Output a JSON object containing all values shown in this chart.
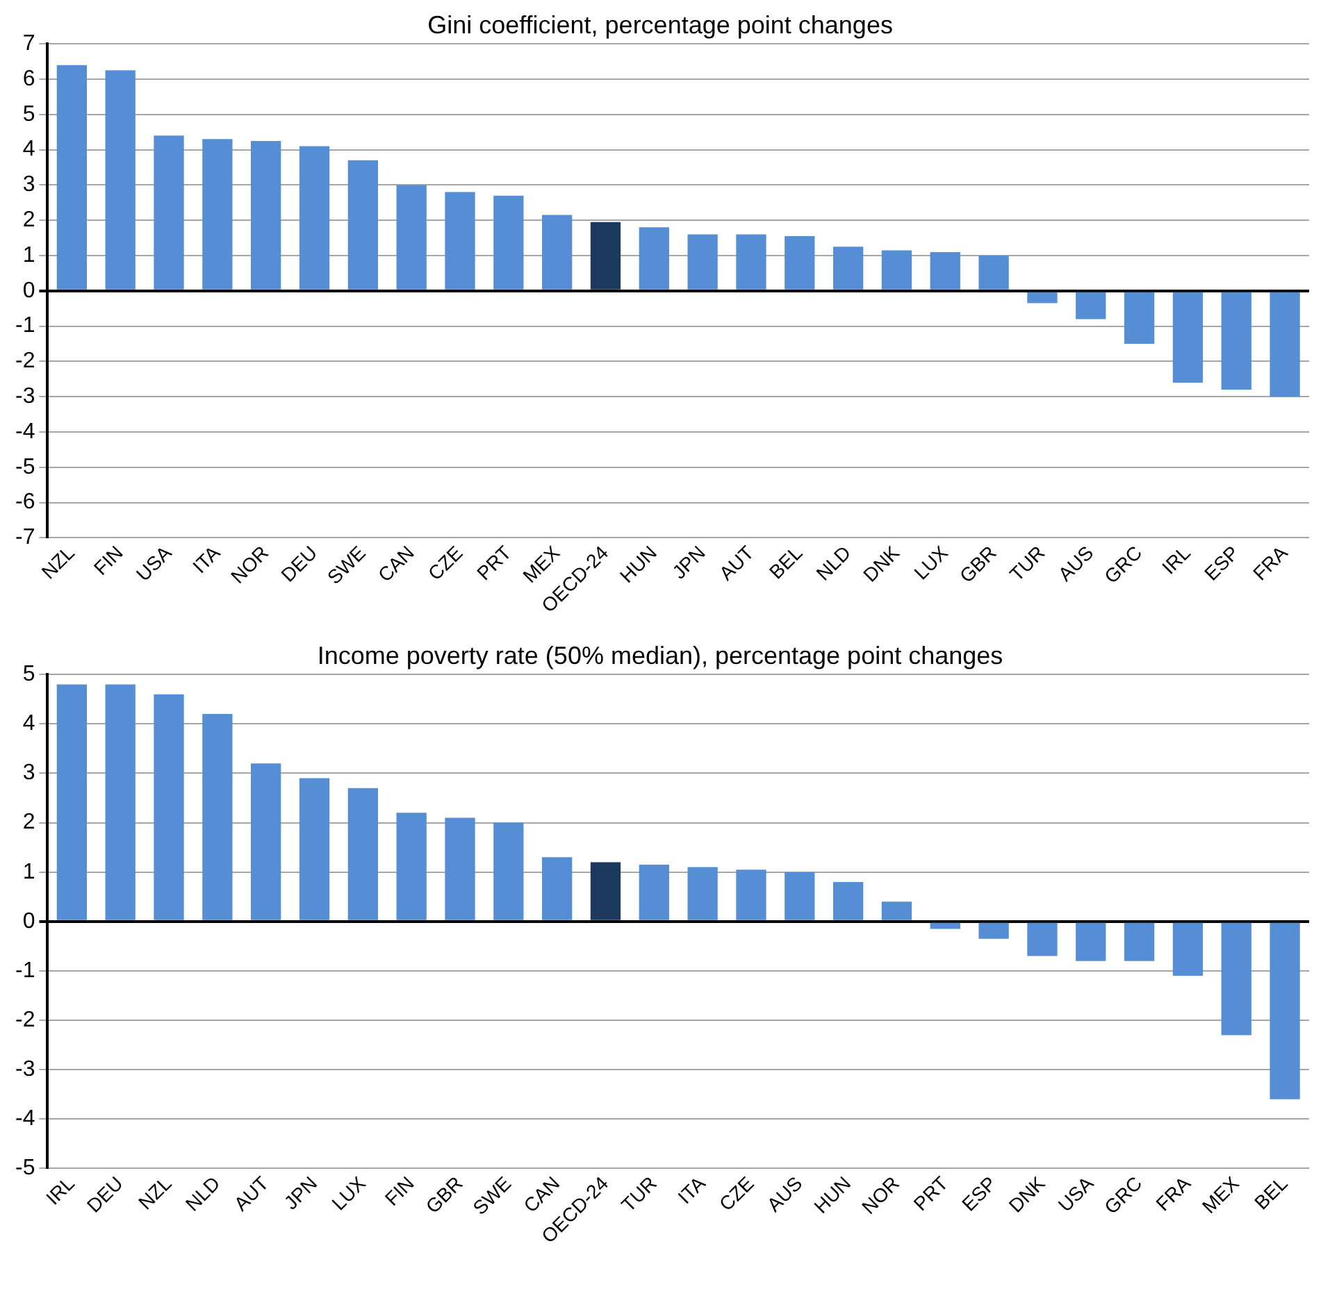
{
  "chart_data": [
    {
      "type": "bar",
      "title": "Gini coefficient, percentage point changes",
      "categories": [
        "NZL",
        "FIN",
        "USA",
        "ITA",
        "NOR",
        "DEU",
        "SWE",
        "CAN",
        "CZE",
        "PRT",
        "MEX",
        "OECD-24",
        "HUN",
        "JPN",
        "AUT",
        "BEL",
        "NLD",
        "DNK",
        "LUX",
        "GBR",
        "TUR",
        "AUS",
        "GRC",
        "IRL",
        "ESP",
        "FRA"
      ],
      "values": [
        6.4,
        6.25,
        4.4,
        4.3,
        4.25,
        4.1,
        3.7,
        3.0,
        2.8,
        2.7,
        2.15,
        1.95,
        1.8,
        1.6,
        1.6,
        1.55,
        1.25,
        1.15,
        1.1,
        1.0,
        -0.35,
        -0.8,
        -1.5,
        -2.6,
        -2.8,
        -3.0
      ],
      "colors": [
        "#558ed5",
        "#558ed5",
        "#558ed5",
        "#558ed5",
        "#558ed5",
        "#558ed5",
        "#558ed5",
        "#558ed5",
        "#558ed5",
        "#558ed5",
        "#558ed5",
        "#1b3a5e",
        "#558ed5",
        "#558ed5",
        "#558ed5",
        "#558ed5",
        "#558ed5",
        "#558ed5",
        "#558ed5",
        "#558ed5",
        "#558ed5",
        "#558ed5",
        "#558ed5",
        "#558ed5",
        "#558ed5",
        "#558ed5"
      ],
      "ylim": [
        -7,
        7
      ],
      "yticks": [
        -7,
        -6,
        -5,
        -4,
        -3,
        -2,
        -1,
        0,
        1,
        2,
        3,
        4,
        5,
        6,
        7
      ],
      "grid": "y",
      "legend": false
    },
    {
      "type": "bar",
      "title": "Income poverty rate (50% median), percentage point changes",
      "categories": [
        "IRL",
        "DEU",
        "NZL",
        "NLD",
        "AUT",
        "JPN",
        "LUX",
        "FIN",
        "GBR",
        "SWE",
        "CAN",
        "OECD-24",
        "TUR",
        "ITA",
        "CZE",
        "AUS",
        "HUN",
        "NOR",
        "PRT",
        "ESP",
        "DNK",
        "USA",
        "GRC",
        "FRA",
        "MEX",
        "BEL"
      ],
      "values": [
        4.8,
        4.8,
        4.6,
        4.2,
        3.2,
        2.9,
        2.7,
        2.2,
        2.1,
        2.0,
        1.3,
        1.2,
        1.15,
        1.1,
        1.05,
        1.0,
        0.8,
        0.4,
        -0.15,
        -0.35,
        -0.7,
        -0.8,
        -0.8,
        -1.1,
        -2.3,
        -3.6
      ],
      "colors": [
        "#558ed5",
        "#558ed5",
        "#558ed5",
        "#558ed5",
        "#558ed5",
        "#558ed5",
        "#558ed5",
        "#558ed5",
        "#558ed5",
        "#558ed5",
        "#558ed5",
        "#1b3a5e",
        "#558ed5",
        "#558ed5",
        "#558ed5",
        "#558ed5",
        "#558ed5",
        "#558ed5",
        "#558ed5",
        "#558ed5",
        "#558ed5",
        "#558ed5",
        "#558ed5",
        "#558ed5",
        "#558ed5",
        "#558ed5"
      ],
      "ylim": [
        -5,
        5
      ],
      "yticks": [
        -5,
        -4,
        -3,
        -2,
        -1,
        0,
        1,
        2,
        3,
        4,
        5
      ],
      "grid": "y",
      "legend": false
    }
  ]
}
